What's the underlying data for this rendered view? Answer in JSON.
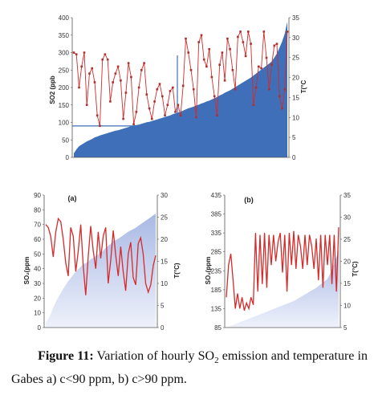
{
  "caption": {
    "label": "Figure 11:",
    "text_a": "Variation of hourly SO",
    "sub": "2",
    "text_b": " emission and temperature in Gabes a) c<90 ppm, b) c>90 ppm."
  },
  "colors": {
    "line": "#d42a2a",
    "marker": "#b03030",
    "area_dark": "#3f6fb8",
    "area_light_top": "#a9b9e4",
    "area_light_bottom": "#eef1fb",
    "axis": "#555555"
  },
  "chart_data": [
    {
      "type": "line",
      "panel": "top",
      "ylabel": "SO2 (ppb",
      "y2label": "T(°C",
      "ylim": [
        0,
        400
      ],
      "y_ticks": [
        0,
        50,
        100,
        150,
        200,
        250,
        300,
        350,
        400
      ],
      "y2lim": [
        0,
        35
      ],
      "y2_ticks": [
        0,
        5,
        10,
        15,
        20,
        25,
        30,
        35
      ],
      "reference_line_so2": 90,
      "series": [
        {
          "kind": "line",
          "axis": "left",
          "markers": true,
          "values": [
            300,
            295,
            200,
            260,
            300,
            150,
            240,
            255,
            215,
            120,
            90,
            280,
            295,
            280,
            160,
            215,
            240,
            260,
            220,
            110,
            185,
            270,
            230,
            95,
            130,
            200,
            250,
            270,
            180,
            140,
            110,
            160,
            195,
            210,
            175,
            120,
            150,
            190,
            200,
            130,
            150,
            120,
            205,
            340,
            300,
            250,
            195,
            115,
            330,
            350,
            280,
            260,
            310,
            230,
            175,
            120,
            265,
            300,
            220,
            340,
            310,
            250,
            195,
            345,
            360,
            330,
            290,
            360,
            325,
            150,
            200,
            260,
            255,
            360,
            285,
            195,
            265,
            320,
            325,
            175,
            140,
            195,
            360
          ]
        },
        {
          "kind": "area",
          "axis": "right",
          "values": [
            1,
            2,
            2.8,
            3.2,
            3.6,
            4,
            4.3,
            4.6,
            5,
            5.2,
            5.5,
            5.7,
            5.9,
            6.1,
            6.3,
            6.5,
            6.7,
            6.8,
            7,
            7.2,
            7.4,
            7.6,
            7.8,
            8,
            8.1,
            8.2,
            8.4,
            8.6,
            8.8,
            8.9,
            9.1,
            9.3,
            9.5,
            9.7,
            9.9,
            10.1,
            10.3,
            10.5,
            10.8,
            11,
            11.2,
            11.4,
            11.7,
            12,
            12.3,
            12.5,
            12.7,
            13,
            13.2,
            13.5,
            13.7,
            14,
            14.2,
            14.5,
            14.8,
            15.1,
            15.5,
            15.8,
            16.2,
            16.5,
            16.8,
            17.2,
            17.6,
            18,
            18.4,
            18.8,
            19.2,
            19.6,
            20,
            20.5,
            21,
            21.5,
            22,
            22.5,
            23,
            23.5,
            24,
            25,
            26,
            27.5,
            29,
            31,
            34
          ]
        }
      ]
    },
    {
      "type": "line",
      "panel": "a",
      "title": "(a)",
      "ylabel": "SO₂(ppm",
      "y2label": "T(°C)",
      "ylim": [
        0,
        90
      ],
      "y_ticks": [
        0,
        10,
        20,
        30,
        40,
        50,
        60,
        70,
        80,
        90
      ],
      "y2lim": [
        0,
        30
      ],
      "y2_ticks": [
        0,
        5,
        10,
        15,
        20,
        25,
        30
      ],
      "series": [
        {
          "kind": "line",
          "axis": "left",
          "values": [
            70,
            68,
            62,
            48,
            65,
            74,
            72,
            60,
            44,
            35,
            68,
            62,
            38,
            52,
            70,
            42,
            22,
            48,
            69,
            52,
            40,
            65,
            47,
            62,
            68,
            30,
            46,
            66,
            49,
            35,
            55,
            38,
            25,
            50,
            58,
            34,
            29,
            57,
            61,
            50,
            30,
            24,
            29,
            42,
            49
          ]
        },
        {
          "kind": "area",
          "axis": "right",
          "values": [
            1,
            2,
            3,
            4.5,
            5.8,
            6.8,
            7.8,
            8.8,
            9.6,
            10.5,
            11.2,
            12,
            12.6,
            13.2,
            13.8,
            14.4,
            14.6,
            14.9,
            15.5,
            15.8,
            16.2,
            16.6,
            17,
            17.4,
            18,
            18.5,
            19,
            19.6,
            19.8,
            20.1,
            20.5,
            20.9,
            21.3,
            21.7,
            22,
            22.3,
            22.6,
            23,
            23.4,
            23.8,
            24.2,
            24.6,
            25,
            25.4,
            25.8
          ]
        }
      ]
    },
    {
      "type": "line",
      "panel": "b",
      "title": "(b)",
      "ylabel": "SO₂(ppm",
      "y2label": "T(°C)",
      "ylim": [
        85,
        435
      ],
      "y_ticks": [
        85,
        135,
        185,
        235,
        285,
        335,
        385,
        435
      ],
      "y2lim": [
        5,
        35
      ],
      "y2_ticks": [
        5,
        10,
        15,
        20,
        25,
        30,
        35
      ],
      "series": [
        {
          "kind": "line",
          "axis": "left",
          "values": [
            165,
            250,
            280,
            210,
            135,
            175,
            135,
            165,
            130,
            150,
            135,
            165,
            145,
            335,
            180,
            330,
            200,
            335,
            190,
            330,
            250,
            330,
            260,
            310,
            335,
            230,
            330,
            180,
            335,
            250,
            340,
            240,
            330,
            300,
            240,
            330,
            250,
            330,
            300,
            240,
            320,
            210,
            330,
            190,
            330,
            250,
            330,
            200,
            330,
            180,
            350
          ]
        },
        {
          "kind": "area",
          "axis": "right",
          "values": [
            5,
            5.2,
            5.4,
            5.6,
            5.8,
            6,
            6.2,
            6.4,
            6.6,
            6.8,
            7,
            7.2,
            7.4,
            7.6,
            7.8,
            8,
            8.2,
            8.4,
            8.6,
            8.8,
            9,
            9.2,
            9.4,
            9.6,
            9.8,
            10,
            10.2,
            10.4,
            10.6,
            10.8,
            11,
            11.3,
            11.6,
            11.9,
            12.2,
            12.5,
            12.8,
            13.1,
            13.4,
            13.7,
            14,
            14.4,
            14.8,
            15.2,
            15.6,
            16,
            17,
            18,
            19.5,
            21,
            22.5
          ]
        }
      ]
    }
  ]
}
